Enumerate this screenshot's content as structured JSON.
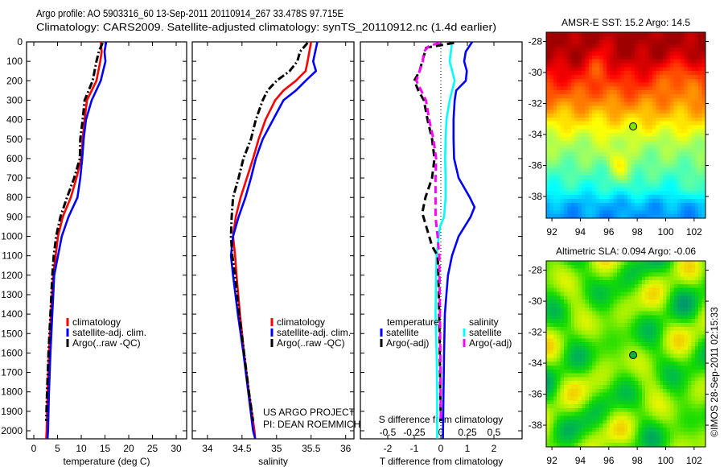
{
  "title": {
    "line1": "Argo profile: AO 5903316_60 13-Sep-2011 20110914_267 33.478S 97.715E",
    "line2": "Climatology: CARS2009. Satellite-adjusted climatology: synTS_20110912.nc (1.4d earlier)"
  },
  "footer": {
    "project": "US ARGO PROJECT",
    "pi": "PI: DEAN ROEMMICH"
  },
  "copyright": "©IMOS 28-Sep-2011 02:15:33",
  "colors": {
    "climatology": "#ff0000",
    "satellite": "#0000ff",
    "argo": "#000000",
    "salinity_satellite": "#00ffff",
    "salinity_argo": "#ff00ff"
  },
  "chart_data": [
    {
      "id": "temperature",
      "type": "line",
      "xlabel": "temperature (deg C)",
      "ylabel": "depth",
      "xlim": [
        -1.53,
        32.2
      ],
      "ylim": [
        0,
        2041
      ],
      "xticks": [
        "0",
        "5",
        "10",
        "15",
        "20",
        "25",
        "30"
      ],
      "yticks": [
        "0",
        "100",
        "200",
        "300",
        "400",
        "500",
        "600",
        "700",
        "800",
        "900",
        "1000",
        "1100",
        "1200",
        "1300",
        "1400",
        "1500",
        "1600",
        "1700",
        "1800",
        "1900",
        "2000"
      ],
      "legend": [
        {
          "label": "climatology",
          "color": "#ff0000"
        },
        {
          "label": "satellite-adj. clim.",
          "color": "#0000ff"
        },
        {
          "label": "Argo(..raw -QC)",
          "color": "#000000"
        }
      ],
      "series": [
        {
          "name": "climatology",
          "color": "#ff0000",
          "style": "solid",
          "points": [
            [
              0,
              14.1
            ],
            [
              50,
              14.3
            ],
            [
              100,
              14.0
            ],
            [
              200,
              13.2
            ],
            [
              300,
              11.2
            ],
            [
              400,
              10.7
            ],
            [
              500,
              10.3
            ],
            [
              600,
              10.0
            ],
            [
              700,
              9.0
            ],
            [
              800,
              7.8
            ],
            [
              900,
              6.1
            ],
            [
              1000,
              5.1
            ],
            [
              1100,
              4.6
            ],
            [
              1200,
              4.1
            ],
            [
              1400,
              3.6
            ],
            [
              1600,
              3.2
            ],
            [
              1800,
              2.9
            ],
            [
              2000,
              2.7
            ],
            [
              2040,
              2.6
            ]
          ]
        },
        {
          "name": "satellite-adj. clim.",
          "color": "#0000ff",
          "style": "solid",
          "points": [
            [
              0,
              15.25
            ],
            [
              50,
              14.9
            ],
            [
              100,
              15.1
            ],
            [
              200,
              14.1
            ],
            [
              300,
              12.2
            ],
            [
              400,
              11.0
            ],
            [
              500,
              10.5
            ],
            [
              600,
              10.2
            ],
            [
              700,
              9.8
            ],
            [
              800,
              9.2
            ],
            [
              900,
              7.3
            ],
            [
              1000,
              5.9
            ],
            [
              1100,
              5.1
            ],
            [
              1200,
              4.3
            ],
            [
              1400,
              3.9
            ],
            [
              1600,
              3.5
            ],
            [
              1800,
              3.2
            ],
            [
              2000,
              3.0
            ],
            [
              2040,
              2.9
            ]
          ]
        },
        {
          "name": "Argo(..raw -QC)",
          "color": "#000000",
          "style": "dashdot",
          "points": [
            [
              5,
              14.5
            ],
            [
              50,
              13.7
            ],
            [
              100,
              13.2
            ],
            [
              200,
              12.4
            ],
            [
              300,
              10.7
            ],
            [
              400,
              10.3
            ],
            [
              500,
              9.8
            ],
            [
              600,
              9.7
            ],
            [
              700,
              8.5
            ],
            [
              800,
              7.0
            ],
            [
              900,
              5.6
            ],
            [
              1000,
              4.7
            ],
            [
              1100,
              4.2
            ],
            [
              1200,
              3.9
            ],
            [
              1400,
              3.5
            ],
            [
              1600,
              3.1
            ],
            [
              1800,
              2.8
            ],
            [
              1950,
              2.6
            ]
          ]
        }
      ]
    },
    {
      "id": "salinity",
      "type": "line",
      "xlabel": "salinity",
      "ylabel": "depth",
      "xlim": [
        33.78,
        36.12
      ],
      "ylim": [
        0,
        2041
      ],
      "xticks": [
        "34",
        "34.5",
        "35",
        "35.5",
        "36"
      ],
      "legend": [
        {
          "label": "climatology",
          "color": "#ff0000"
        },
        {
          "label": "satellite-adj. clim.",
          "color": "#0000ff"
        },
        {
          "label": "Argo(..raw -QC)",
          "color": "#000000"
        }
      ],
      "series": [
        {
          "name": "climatology",
          "color": "#ff0000",
          "style": "solid",
          "points": [
            [
              0,
              35.5
            ],
            [
              100,
              35.45
            ],
            [
              150,
              35.42
            ],
            [
              200,
              35.28
            ],
            [
              250,
              35.1
            ],
            [
              300,
              34.98
            ],
            [
              400,
              34.84
            ],
            [
              500,
              34.74
            ],
            [
              600,
              34.66
            ],
            [
              700,
              34.57
            ],
            [
              800,
              34.48
            ],
            [
              900,
              34.41
            ],
            [
              1000,
              34.37
            ],
            [
              1100,
              34.4
            ],
            [
              1200,
              34.42
            ],
            [
              1400,
              34.47
            ],
            [
              1600,
              34.53
            ],
            [
              1800,
              34.6
            ],
            [
              2000,
              34.68
            ],
            [
              2040,
              34.69
            ]
          ]
        },
        {
          "name": "satellite-adj. clim.",
          "color": "#0000ff",
          "style": "solid",
          "points": [
            [
              0,
              35.59
            ],
            [
              100,
              35.53
            ],
            [
              150,
              35.57
            ],
            [
              200,
              35.42
            ],
            [
              250,
              35.28
            ],
            [
              300,
              35.1
            ],
            [
              400,
              34.95
            ],
            [
              500,
              34.8
            ],
            [
              600,
              34.7
            ],
            [
              700,
              34.63
            ],
            [
              800,
              34.55
            ],
            [
              900,
              34.45
            ],
            [
              1000,
              34.37
            ],
            [
              1100,
              34.34
            ],
            [
              1200,
              34.37
            ],
            [
              1400,
              34.44
            ],
            [
              1600,
              34.52
            ],
            [
              1800,
              34.59
            ],
            [
              2000,
              34.66
            ],
            [
              2040,
              34.69
            ]
          ]
        },
        {
          "name": "Argo(..raw -QC)",
          "color": "#000000",
          "style": "dashdot",
          "points": [
            [
              5,
              35.45
            ],
            [
              50,
              35.34
            ],
            [
              100,
              35.3
            ],
            [
              150,
              35.19
            ],
            [
              200,
              35.0
            ],
            [
              250,
              34.87
            ],
            [
              300,
              34.8
            ],
            [
              400,
              34.7
            ],
            [
              500,
              34.63
            ],
            [
              600,
              34.52
            ],
            [
              700,
              34.45
            ],
            [
              800,
              34.37
            ],
            [
              900,
              34.35
            ],
            [
              1000,
              34.34
            ],
            [
              1100,
              34.36
            ],
            [
              1200,
              34.4
            ],
            [
              1400,
              34.46
            ],
            [
              1600,
              34.53
            ],
            [
              1800,
              34.6
            ],
            [
              1950,
              34.66
            ]
          ]
        }
      ]
    },
    {
      "id": "difference",
      "type": "line",
      "xlabel": "T difference from climatology",
      "ylabel": "depth",
      "xlim": [
        -3.03,
        3.06
      ],
      "ylim": [
        0,
        2041
      ],
      "xticks": [
        "-2",
        "-1",
        "0",
        "1",
        "2"
      ],
      "secondary_xlabel": "S difference from climatology",
      "secondary_xlim": [
        -0.7575,
        0.765
      ],
      "secondary_xticks": [
        "-0.5",
        "-0.25",
        "0",
        "0.25",
        "0.5"
      ],
      "legend_temperature": {
        "title": "temperature",
        "items": [
          {
            "label": "satellite",
            "color": "#0000ff"
          },
          {
            "label": "Argo(-adj)",
            "color": "#000000"
          }
        ]
      },
      "legend_salinity": {
        "title": "salinity",
        "items": [
          {
            "label": "satellite",
            "color": "#00ffff"
          },
          {
            "label": "Argo(-adj)",
            "color": "#ff00ff"
          }
        ]
      },
      "series": [
        {
          "name": "temperature satellite",
          "axis": "T",
          "color": "#0000ff",
          "style": "solid",
          "points": [
            [
              0,
              1.18
            ],
            [
              50,
              0.94
            ],
            [
              100,
              0.88
            ],
            [
              150,
              0.98
            ],
            [
              200,
              0.94
            ],
            [
              250,
              0.58
            ],
            [
              300,
              0.52
            ],
            [
              400,
              0.48
            ],
            [
              500,
              0.48
            ],
            [
              600,
              0.5
            ],
            [
              700,
              0.67
            ],
            [
              800,
              1.09
            ],
            [
              850,
              1.27
            ],
            [
              900,
              1.12
            ],
            [
              1000,
              0.67
            ],
            [
              1100,
              0.42
            ],
            [
              1200,
              0.27
            ],
            [
              1300,
              0.21
            ],
            [
              1400,
              0.15
            ],
            [
              1600,
              0.12
            ],
            [
              1800,
              0.1
            ],
            [
              2040,
              0.08
            ]
          ]
        },
        {
          "name": "salinity satellite",
          "axis": "S",
          "color": "#00ffff",
          "style": "solid",
          "points": [
            [
              0,
              0.106
            ],
            [
              100,
              0.083
            ],
            [
              200,
              0.13
            ],
            [
              250,
              0.106
            ],
            [
              300,
              0.083
            ],
            [
              400,
              0.053
            ],
            [
              500,
              0.045
            ],
            [
              600,
              0.04
            ],
            [
              700,
              0.045
            ],
            [
              800,
              0.045
            ],
            [
              900,
              0.03
            ],
            [
              950,
              -0.008
            ],
            [
              1000,
              -0.02
            ],
            [
              1100,
              -0.04
            ],
            [
              1200,
              -0.045
            ],
            [
              1400,
              -0.05
            ],
            [
              1600,
              -0.04
            ],
            [
              1800,
              -0.035
            ],
            [
              2040,
              -0.035
            ]
          ]
        },
        {
          "name": "temperature Argo(-adj)",
          "axis": "T",
          "color": "#000000",
          "style": "dashed",
          "points": [
            [
              5,
              0.5
            ],
            [
              30,
              -0.55
            ],
            [
              100,
              -0.7
            ],
            [
              150,
              -0.8
            ],
            [
              200,
              -1.0
            ],
            [
              250,
              -0.85
            ],
            [
              300,
              -0.64
            ],
            [
              400,
              -0.5
            ],
            [
              500,
              -0.33
            ],
            [
              600,
              -0.24
            ],
            [
              700,
              -0.33
            ],
            [
              800,
              -0.58
            ],
            [
              880,
              -0.7
            ],
            [
              950,
              -0.55
            ],
            [
              1050,
              -0.33
            ],
            [
              1100,
              -0.12
            ],
            [
              1200,
              -0.09
            ],
            [
              1400,
              -0.06
            ],
            [
              1600,
              -0.04
            ],
            [
              1800,
              -0.02
            ],
            [
              1950,
              0.0
            ]
          ]
        },
        {
          "name": "salinity Argo(-adj)",
          "axis": "S",
          "color": "#ff00ff",
          "style": "dashed",
          "points": [
            [
              5,
              -0.008
            ],
            [
              20,
              -0.11
            ],
            [
              50,
              -0.16
            ],
            [
              100,
              -0.17
            ],
            [
              200,
              -0.23
            ],
            [
              300,
              -0.14
            ],
            [
              400,
              -0.11
            ],
            [
              500,
              -0.07
            ],
            [
              600,
              -0.045
            ],
            [
              700,
              -0.05
            ],
            [
              900,
              -0.05
            ],
            [
              1000,
              -0.03
            ],
            [
              1100,
              -0.015
            ],
            [
              1300,
              -0.01
            ],
            [
              1600,
              -0.005
            ],
            [
              1950,
              0.0
            ]
          ]
        }
      ]
    },
    {
      "id": "sst-map",
      "type": "heatmap",
      "title": "AMSR-E SST: 15.2 Argo: 14.5",
      "lonlim": [
        91.6,
        102.8
      ],
      "latlim": [
        -39.4,
        -27.4
      ],
      "lonticks": [
        "92",
        "94",
        "96",
        "98",
        "100",
        "102"
      ],
      "latticks": [
        "-28",
        "-30",
        "-32",
        "-34",
        "-36",
        "-38"
      ],
      "argo": {
        "lon": 97.715,
        "lat": -33.478,
        "color": "#80e000"
      }
    },
    {
      "id": "sla-map",
      "type": "heatmap",
      "title": "Altimetric SLA: 0.094 Argo: -0.06",
      "lonlim": [
        91.6,
        102.8
      ],
      "latlim": [
        -39.4,
        -27.4
      ],
      "lonticks": [
        "92",
        "94",
        "96",
        "98",
        "100",
        "102"
      ],
      "latticks": [
        "-28",
        "-30",
        "-32",
        "-34",
        "-36",
        "-38"
      ],
      "argo": {
        "lon": 97.715,
        "lat": -33.478,
        "color": "#00b040"
      }
    }
  ]
}
